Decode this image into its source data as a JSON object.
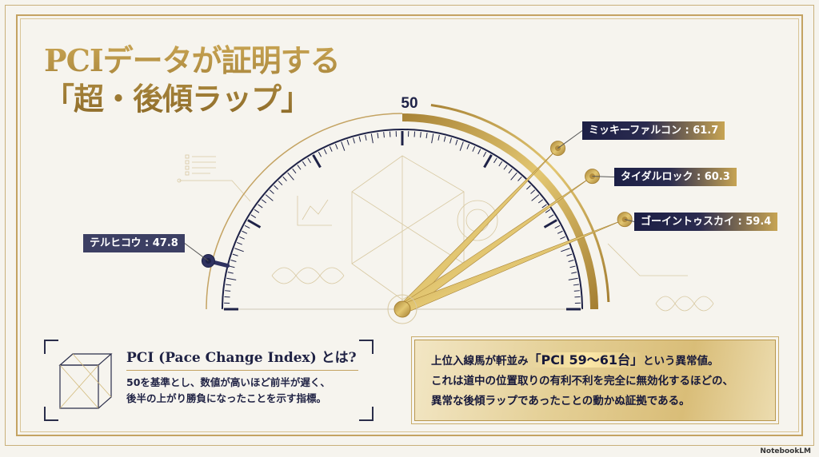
{
  "title": {
    "line1": "PCIデータが証明する",
    "line2": "「超・後傾ラップ」"
  },
  "gauge": {
    "center_label": "50"
  },
  "chart_data": {
    "type": "gauge",
    "reference": 50,
    "series": [
      {
        "name": "ミッキーファルコン",
        "value": 61.7,
        "label": "ミッキーファルコン : 61.7",
        "color": "#c9a553"
      },
      {
        "name": "タイダルロック",
        "value": 60.3,
        "label": "タイダルロック : 60.3",
        "color": "#c9a553"
      },
      {
        "name": "ゴーイントゥスカイ",
        "value": 59.4,
        "label": "ゴーイントゥスカイ : 59.4",
        "color": "#c9a553"
      },
      {
        "name": "テルヒコウ",
        "value": 47.8,
        "label": "テルヒコウ : 47.8",
        "color": "#2f3260"
      }
    ]
  },
  "info": {
    "heading": "PCI (Pace Change Index) とは?",
    "line1": "50を基準とし、数値が高いほど前半が遅く、",
    "line2": "後半の上がり勝負になったことを示す指標。"
  },
  "conclusion": {
    "pre": "上位入線馬が軒並み",
    "highlight": "「PCI 59〜61台」",
    "post": "という異常値。",
    "line2": "これは道中の位置取りの有利不利を完全に無効化するほどの、",
    "line3": "異常な後傾ラップであったことの動かぬ証拠である。"
  },
  "brand": "NotebookLM",
  "colors": {
    "gold": "#c9a553",
    "navy": "#1e2247",
    "background": "#f6f4ee"
  }
}
